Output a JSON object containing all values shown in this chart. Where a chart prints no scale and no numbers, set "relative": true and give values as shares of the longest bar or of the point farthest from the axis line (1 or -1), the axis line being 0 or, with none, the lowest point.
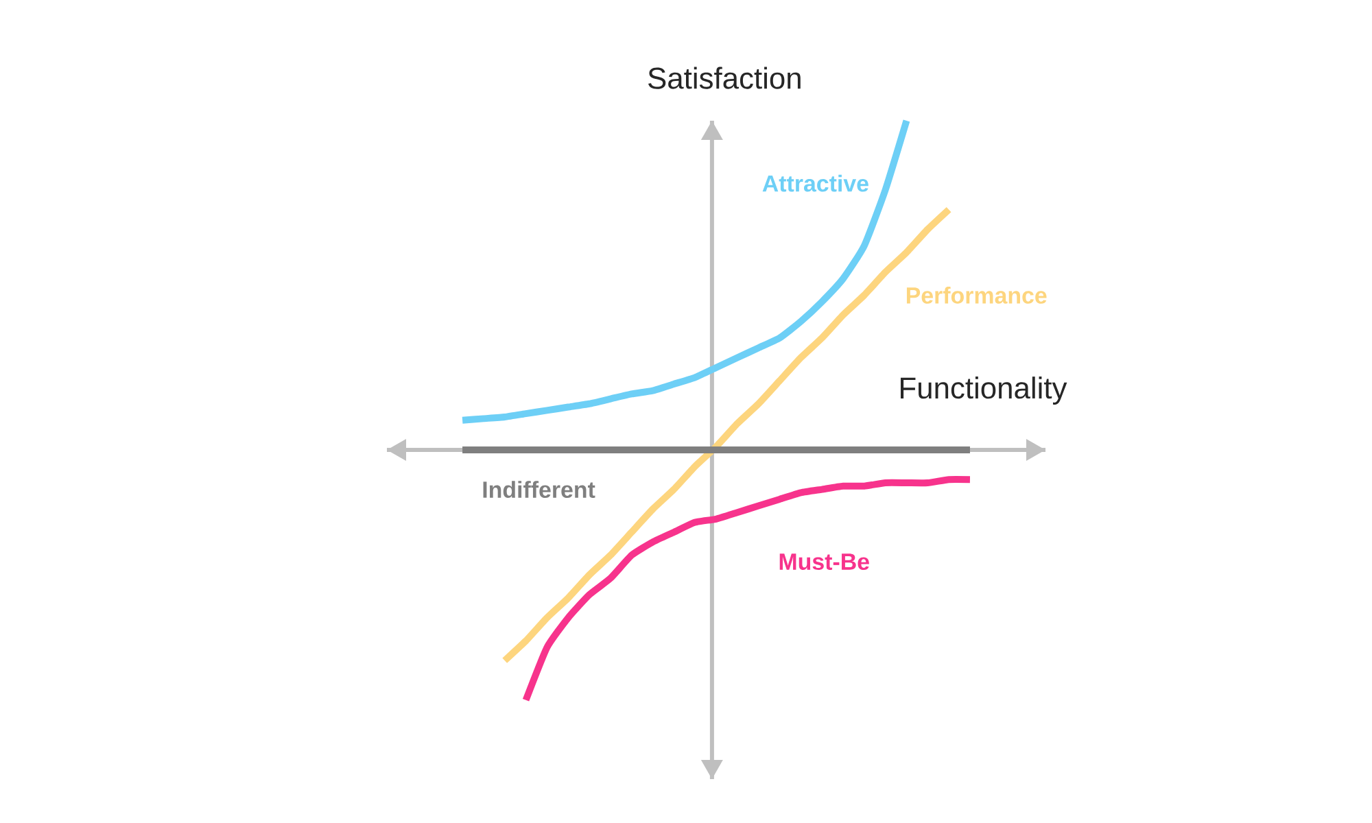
{
  "chart_data": {
    "type": "line",
    "xlabel": "Functionality",
    "ylabel": "Satisfaction",
    "relative": true,
    "categories": [
      null,
      null,
      null,
      null,
      null,
      null,
      null,
      null,
      null,
      null,
      null,
      null,
      null,
      null,
      null,
      null,
      null,
      null,
      null,
      null,
      null,
      null,
      null,
      null,
      null
    ],
    "series": [
      {
        "name": "Attractive",
        "color": "#6dcff6",
        "values": [
          0.09,
          0.095,
          0.1,
          0.11,
          0.12,
          0.13,
          0.14,
          0.155,
          0.17,
          0.18,
          0.2,
          0.22,
          0.25,
          0.28,
          0.31,
          0.34,
          0.39,
          0.45,
          0.52,
          0.62,
          0.79,
          1.0,
          null,
          null,
          null
        ]
      },
      {
        "name": "Performance",
        "color": "#fdd57e",
        "values": [
          null,
          null,
          -0.64,
          -0.58,
          -0.51,
          -0.45,
          -0.38,
          -0.32,
          -0.25,
          -0.18,
          -0.12,
          -0.05,
          0.01,
          0.08,
          0.14,
          0.21,
          0.28,
          0.34,
          0.41,
          0.47,
          0.54,
          0.6,
          0.67,
          0.73,
          null
        ]
      },
      {
        "name": "Indifferent",
        "color": "#7f7f7f",
        "values": [
          0,
          0,
          0,
          0,
          0,
          0,
          0,
          0,
          0,
          0,
          0,
          0,
          0,
          0,
          0,
          0,
          0,
          0,
          0,
          0,
          0,
          0,
          0,
          0,
          0
        ]
      },
      {
        "name": "Must-Be",
        "color": "#f7338c",
        "values": [
          null,
          null,
          null,
          -0.76,
          -0.6,
          -0.51,
          -0.44,
          -0.39,
          -0.32,
          -0.28,
          -0.25,
          -0.22,
          -0.21,
          -0.19,
          -0.17,
          -0.15,
          -0.13,
          -0.12,
          -0.11,
          -0.11,
          -0.1,
          -0.1,
          -0.1,
          -0.09,
          -0.09
        ]
      }
    ]
  }
}
